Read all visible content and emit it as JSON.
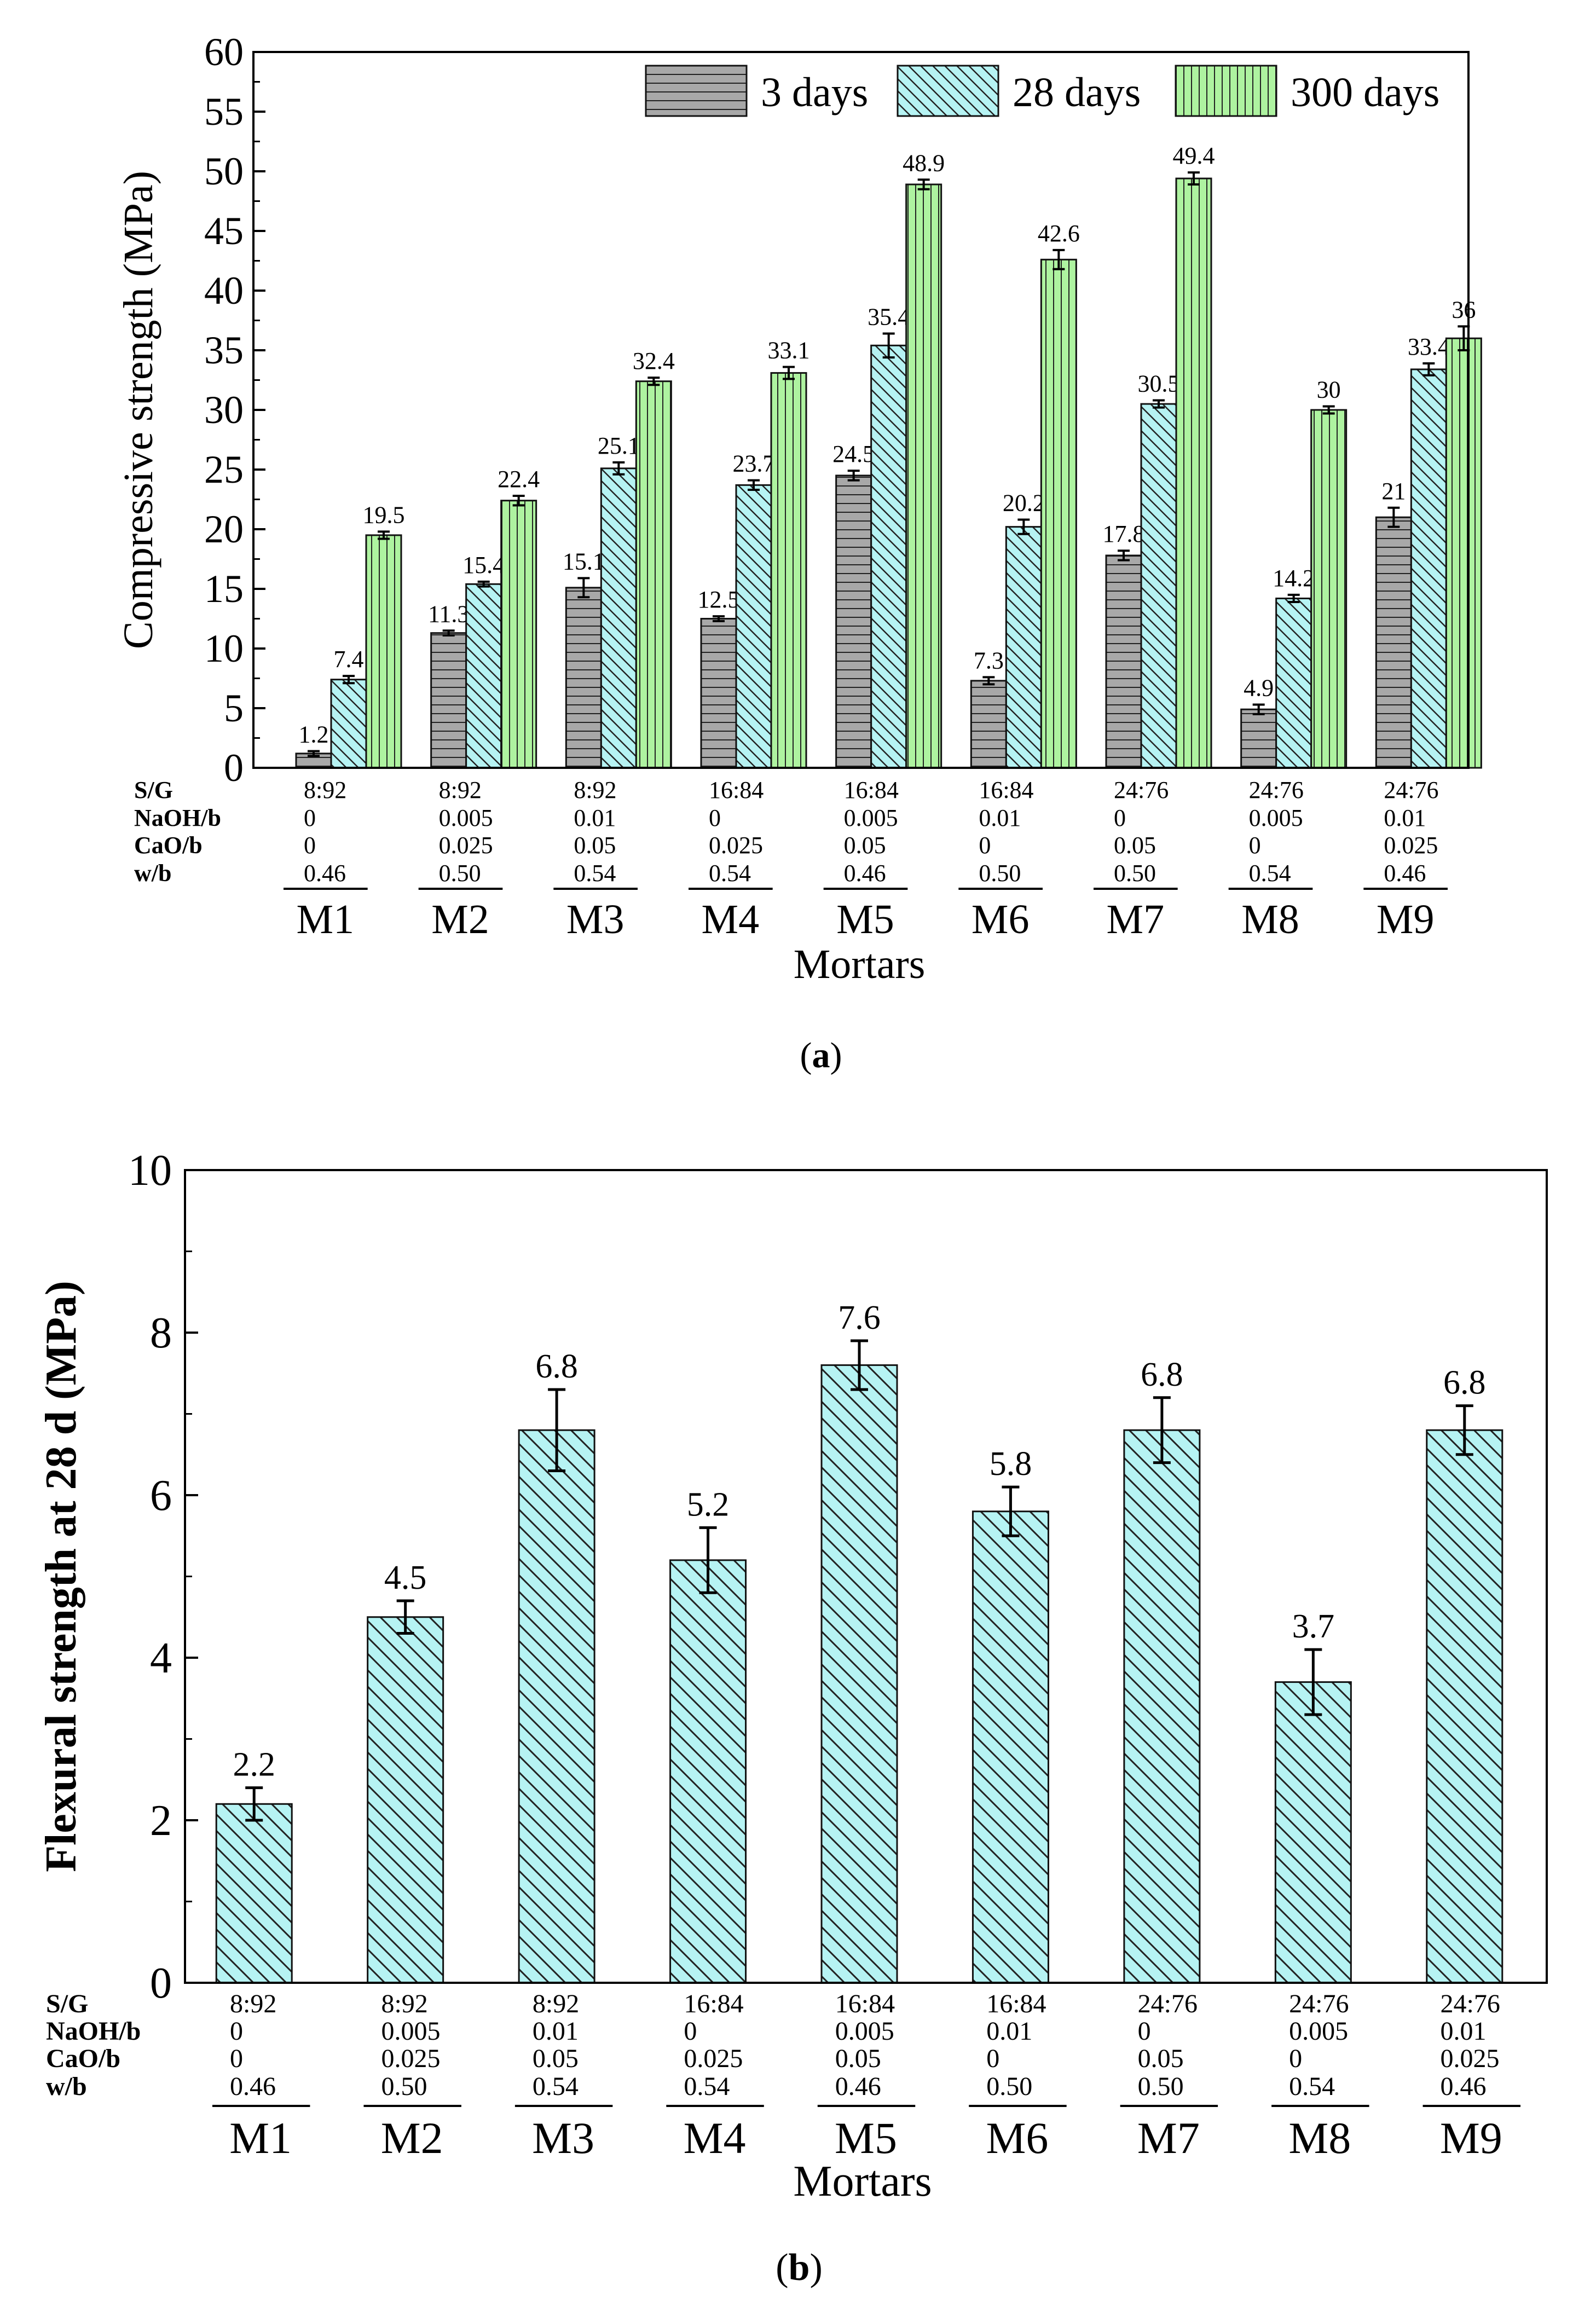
{
  "chart_data": [
    {
      "type": "bar",
      "panel_label": "a",
      "title": "",
      "xlabel": "Mortars",
      "ylabel": "Compressive strength (MPa)",
      "ylim": [
        0,
        60
      ],
      "yticks": [
        0,
        5,
        10,
        15,
        20,
        25,
        30,
        35,
        40,
        45,
        50,
        55,
        60
      ],
      "grid": false,
      "legend_position": "top-right",
      "categories": [
        "M1",
        "M2",
        "M3",
        "M4",
        "M5",
        "M6",
        "M7",
        "M8",
        "M9"
      ],
      "series": [
        {
          "name": "3 days",
          "pattern": "horizontal-lines",
          "color": "#a8a8a8",
          "values": [
            1.2,
            11.3,
            15.1,
            12.5,
            24.5,
            7.3,
            17.8,
            4.9,
            21
          ],
          "errors": [
            0.2,
            0.2,
            0.8,
            0.2,
            0.4,
            0.3,
            0.4,
            0.4,
            0.8
          ]
        },
        {
          "name": "28 days",
          "pattern": "diagonal-lines",
          "color": "#b6f3f3",
          "values": [
            7.4,
            15.4,
            25.1,
            23.7,
            35.4,
            20.2,
            30.5,
            14.2,
            33.4
          ],
          "errors": [
            0.3,
            0.2,
            0.5,
            0.4,
            1.0,
            0.6,
            0.3,
            0.3,
            0.5
          ]
        },
        {
          "name": "300 days",
          "pattern": "vertical-lines",
          "color": "#aef3a0",
          "values": [
            19.5,
            22.4,
            32.4,
            33.1,
            48.9,
            42.6,
            49.4,
            30,
            36
          ],
          "errors": [
            0.3,
            0.4,
            0.3,
            0.5,
            0.4,
            0.8,
            0.5,
            0.3,
            1.0
          ]
        }
      ],
      "param_labels": [
        "S/G",
        "NaOH/b",
        "CaO/b",
        "w/b"
      ],
      "params": [
        [
          "8:92",
          "0",
          "0",
          "0.46"
        ],
        [
          "8:92",
          "0.005",
          "0.025",
          "0.50"
        ],
        [
          "8:92",
          "0.01",
          "0.05",
          "0.54"
        ],
        [
          "16:84",
          "0",
          "0.025",
          "0.54"
        ],
        [
          "16:84",
          "0.005",
          "0.05",
          "0.46"
        ],
        [
          "16:84",
          "0.01",
          "0",
          "0.50"
        ],
        [
          "24:76",
          "0",
          "0.05",
          "0.50"
        ],
        [
          "24:76",
          "0.005",
          "0",
          "0.54"
        ],
        [
          "24:76",
          "0.01",
          "0.025",
          "0.46"
        ]
      ]
    },
    {
      "type": "bar",
      "panel_label": "b",
      "title": "",
      "xlabel": "Mortars",
      "ylabel": "Flexural strength at 28 d (MPa)",
      "ylim": [
        0,
        10
      ],
      "yticks": [
        0,
        2,
        4,
        6,
        8,
        10
      ],
      "grid": false,
      "categories": [
        "M1",
        "M2",
        "M3",
        "M4",
        "M5",
        "M6",
        "M7",
        "M8",
        "M9"
      ],
      "series": [
        {
          "name": "28 days",
          "pattern": "diagonal-lines",
          "color": "#b6f3f3",
          "values": [
            2.2,
            4.5,
            6.8,
            5.2,
            7.6,
            5.8,
            6.8,
            3.7,
            6.8
          ],
          "errors": [
            0.2,
            0.2,
            0.5,
            0.4,
            0.3,
            0.3,
            0.4,
            0.4,
            0.3
          ]
        }
      ],
      "param_labels": [
        "S/G",
        "NaOH/b",
        "CaO/b",
        "w/b"
      ],
      "params": [
        [
          "8:92",
          "0",
          "0",
          "0.46"
        ],
        [
          "8:92",
          "0.005",
          "0.025",
          "0.50"
        ],
        [
          "8:92",
          "0.01",
          "0.05",
          "0.54"
        ],
        [
          "16:84",
          "0",
          "0.025",
          "0.54"
        ],
        [
          "16:84",
          "0.005",
          "0.05",
          "0.46"
        ],
        [
          "16:84",
          "0.01",
          "0",
          "0.50"
        ],
        [
          "24:76",
          "0",
          "0.05",
          "0.50"
        ],
        [
          "24:76",
          "0.005",
          "0",
          "0.54"
        ],
        [
          "24:76",
          "0.01",
          "0.025",
          "0.46"
        ]
      ]
    }
  ]
}
